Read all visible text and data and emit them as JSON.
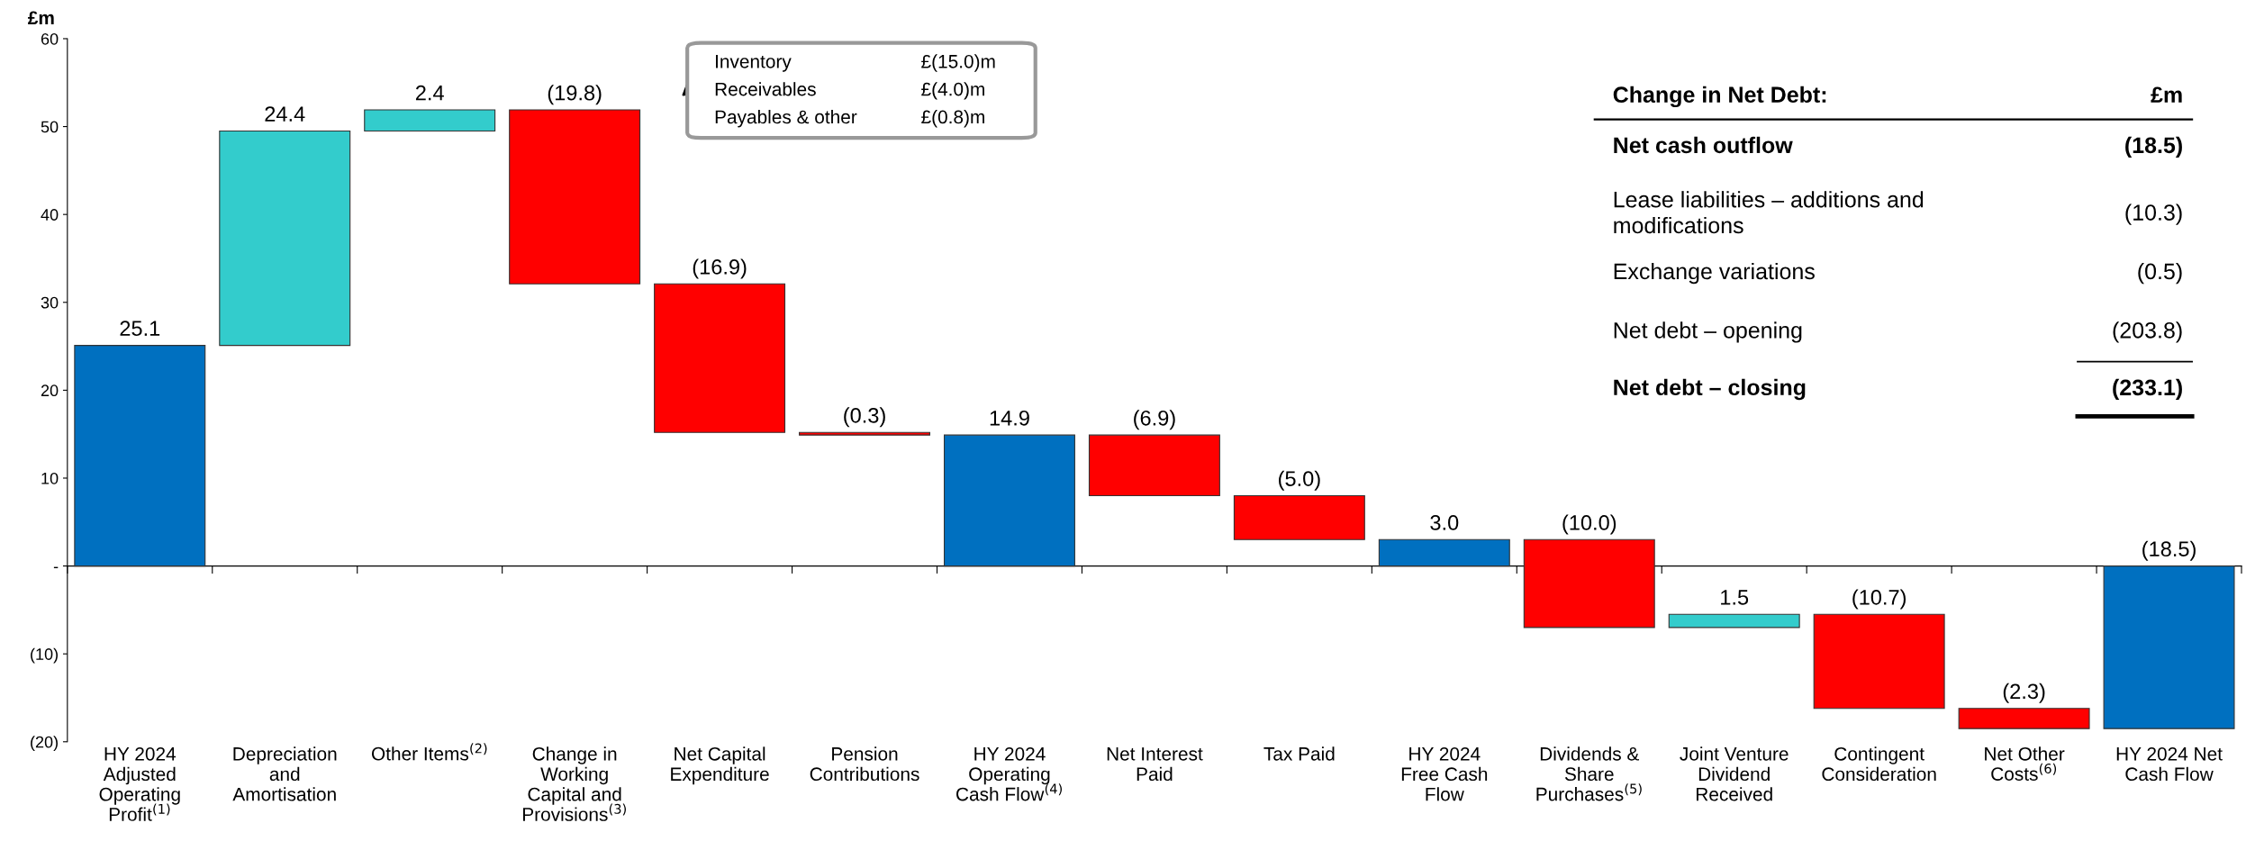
{
  "chart_data": {
    "type": "bar",
    "ylabel": "£m",
    "categories": [
      "HY 2024\nAdjusted\nOperating\nProfit$^{(1)}$",
      "Depreciation\nand\nAmortisation",
      "Other Items$^{(2)}$",
      "Change in\nWorking\nCapital and\nProvisions$^{(3)}$",
      "Net Capital\nExpenditure",
      "Pension\nContributions",
      "HY 2024\nOperating\nCash Flow$^{(4)}$",
      "Net Interest\nPaid",
      "Tax Paid",
      "HY 2024\nFree Cash\nFlow",
      "Dividends &\nShare\nPurchases$^{(5)}$",
      "Joint Venture\nDividend\nReceived",
      "Contingent\nConsideration",
      "Net Other\nCosts$^{(6)}$",
      "HY 2024 Net\nCash Flow"
    ],
    "values": [
      25.1,
      24.4,
      2.4,
      -19.8,
      -16.9,
      -0.3,
      14.9,
      -6.9,
      -5.0,
      3.0,
      -10.0,
      1.5,
      -10.7,
      -2.3,
      -18.5
    ],
    "base": [
      0,
      25.1,
      49.5,
      51.9,
      32.1,
      15.2,
      0,
      14.9,
      8.0,
      0,
      3.0,
      -7.0,
      -5.5,
      -16.2,
      0
    ],
    "colors": [
      "#0070c0",
      "#33cccc",
      "#33cccc",
      "#ff0000",
      "#ff0000",
      "#ff0000",
      "#0070c0",
      "#ff0000",
      "#ff0000",
      "#0070c0",
      "#ff0000",
      "#33cccc",
      "#ff0000",
      "#ff0000",
      "#0070c0"
    ],
    "value_labels": [
      "25.1",
      "24.4",
      "2.4",
      "(19.8)",
      "(16.9)",
      "(0.3)",
      "14.9",
      "(6.9)",
      "(5.0)",
      "3.0",
      "(10.0)",
      "1.5",
      "(10.7)",
      "(2.3)",
      "(18.5)"
    ],
    "ylim": [
      -20,
      60
    ],
    "yticks": [
      {
        "value": -20,
        "label": "(20)"
      },
      {
        "value": -10,
        "label": "(10)"
      },
      {
        "value": 0,
        "label": "-"
      },
      10,
      20,
      30,
      40,
      50,
      60
    ],
    "annotations": [
      "Inventory",
      "£(15.0)m",
      "Receivables",
      "£(4.0)m",
      "Payables & other",
      "£(0.8)m",
      "Change in Net Debt:",
      "£m",
      "Net cash outflow",
      "(18.5)",
      "Lease liabilities – additions and\nmodifications",
      "(10.3)",
      "Exchange variations",
      "(0.5)",
      "Net debt – opening",
      "(203.8)",
      "Net debt – closing",
      "(233.1)"
    ]
  }
}
